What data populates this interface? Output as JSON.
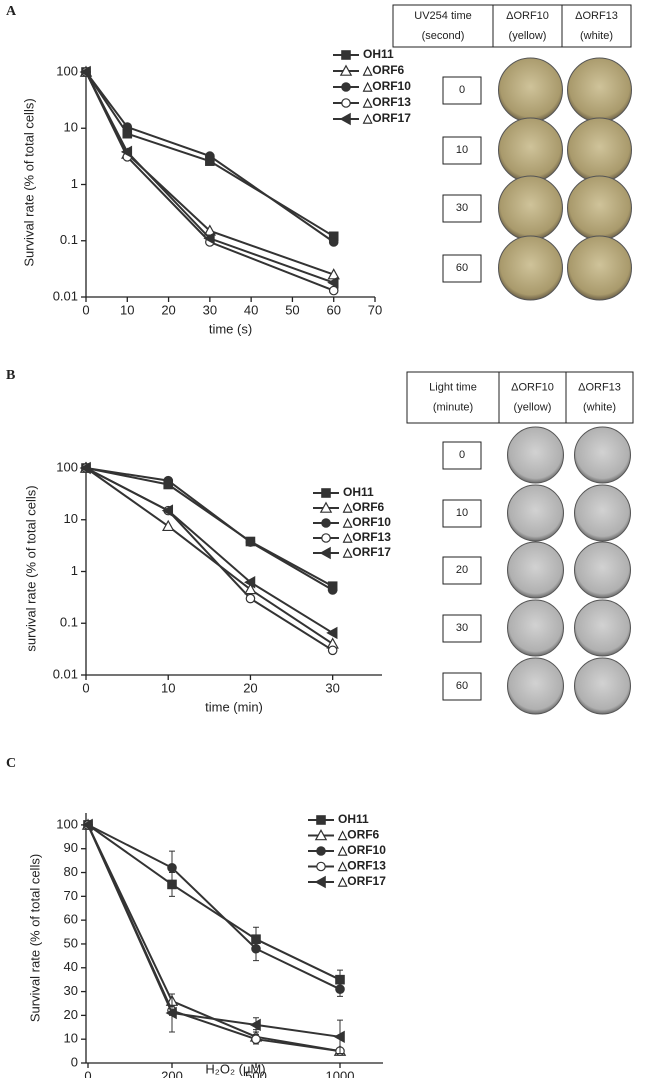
{
  "panel_labels": [
    "A",
    "B",
    "C"
  ],
  "chart_data": [
    {
      "type": "line",
      "log_y": true,
      "x": [
        0,
        10,
        30,
        60
      ],
      "xlim": [
        0,
        70
      ],
      "xticks": [
        0,
        10,
        20,
        30,
        40,
        50,
        60,
        70
      ],
      "ylim": [
        0.01,
        100
      ],
      "yticks": [
        0.01,
        0.1,
        1,
        10,
        100
      ],
      "x_label": "time (s)",
      "y_label": "Survival rate (% of total cells)",
      "series": [
        {
          "name": "OH11",
          "color": "#333333",
          "marker": "square",
          "values": [
            100,
            8,
            2.6,
            0.12
          ]
        },
        {
          "name": "△ORF6",
          "color": "#333333",
          "marker": "triangle-open",
          "values": [
            100,
            3.5,
            0.15,
            0.025
          ]
        },
        {
          "name": "△ORF10",
          "color": "#333333",
          "marker": "circle",
          "values": [
            100,
            10.5,
            3.2,
            0.095
          ]
        },
        {
          "name": "△ORF13",
          "color": "#333333",
          "marker": "circle-open",
          "values": [
            100,
            3.1,
            0.095,
            0.013
          ]
        },
        {
          "name": "△ORF17",
          "color": "#333333",
          "marker": "left-triangle",
          "values": [
            100,
            3.8,
            0.11,
            0.018
          ]
        }
      ]
    },
    {
      "type": "line",
      "log_y": true,
      "x": [
        0,
        10,
        20,
        30
      ],
      "xlim": [
        0,
        36
      ],
      "xticks": [
        0,
        10,
        20,
        30
      ],
      "ylim": [
        0.01,
        100
      ],
      "yticks": [
        0.01,
        0.1,
        1,
        10,
        100
      ],
      "x_label": "time  (min)",
      "y_label": "survival rate (% of total cells)",
      "series": [
        {
          "name": "OH11",
          "color": "#333333",
          "marker": "square",
          "values": [
            100,
            48,
            3.8,
            0.52
          ]
        },
        {
          "name": "△ORF6",
          "color": "#333333",
          "marker": "triangle-open",
          "values": [
            100,
            7.5,
            0.45,
            0.04
          ]
        },
        {
          "name": "△ORF10",
          "color": "#333333",
          "marker": "circle",
          "values": [
            100,
            57,
            3.7,
            0.44
          ]
        },
        {
          "name": "△ORF13",
          "color": "#333333",
          "marker": "circle-open",
          "values": [
            100,
            15,
            0.3,
            0.03
          ]
        },
        {
          "name": "△ORF17",
          "color": "#333333",
          "marker": "left-triangle",
          "values": [
            100,
            15,
            0.62,
            0.065
          ]
        }
      ]
    },
    {
      "type": "line",
      "categories": [
        "0",
        "200",
        "500",
        "1000"
      ],
      "ylim": [
        0,
        105
      ],
      "yticks": [
        0,
        10,
        20,
        30,
        40,
        50,
        60,
        70,
        80,
        90,
        100
      ],
      "x_label": "H₂O₂ (μM)",
      "y_label": "Survival rate (% of total cells)",
      "series": [
        {
          "name": "OH11",
          "color": "#333333",
          "marker": "square",
          "values": [
            100,
            75,
            52,
            35
          ],
          "errors": [
            0,
            5,
            5,
            4
          ]
        },
        {
          "name": "△ORF6",
          "color": "#333333",
          "marker": "triangle-open",
          "values": [
            100,
            26,
            11,
            5
          ],
          "errors": [
            0,
            3,
            3,
            1
          ]
        },
        {
          "name": "△ORF10",
          "color": "#333333",
          "marker": "circle",
          "values": [
            100,
            82,
            48,
            31
          ],
          "errors": [
            0,
            7,
            5,
            3
          ]
        },
        {
          "name": "△ORF13",
          "color": "#333333",
          "marker": "circle-open",
          "values": [
            100,
            22,
            10,
            5
          ],
          "errors": [
            0,
            2,
            2,
            1
          ]
        },
        {
          "name": "△ORF17",
          "color": "#333333",
          "marker": "left-triangle",
          "values": [
            100,
            21,
            16,
            11
          ],
          "errors": [
            0,
            8,
            3,
            7
          ]
        }
      ]
    }
  ],
  "plate_tables": [
    {
      "header": [
        [
          "UV254 time",
          "(second)"
        ],
        [
          "ΔORF10",
          "(yellow)"
        ],
        [
          "ΔORF13",
          "(white)"
        ]
      ],
      "rows": [
        "0",
        "10",
        "30",
        "60"
      ]
    },
    {
      "header": [
        [
          "Light time",
          "(minute)"
        ],
        [
          "ΔORF10",
          "(yellow)"
        ],
        [
          "ΔORF13",
          "(white)"
        ]
      ],
      "rows": [
        "0",
        "10",
        "20",
        "30",
        "60"
      ]
    }
  ]
}
